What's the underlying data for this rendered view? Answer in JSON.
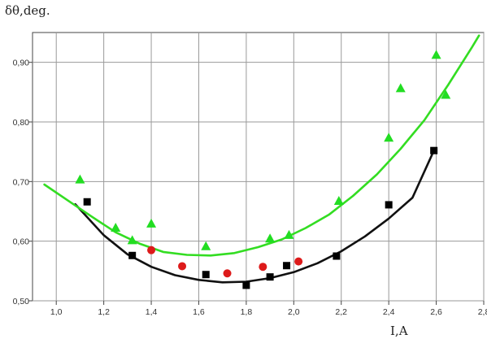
{
  "chart_data": {
    "type": "scatter",
    "title": "",
    "ylabel": "δθ,deg.",
    "xlabel": "I,A",
    "xlim": [
      0.9,
      2.8
    ],
    "ylim": [
      0.5,
      0.95
    ],
    "x_ticks": [
      1.0,
      1.2,
      1.4,
      1.6,
      1.8,
      2.0,
      2.2,
      2.4,
      2.6,
      2.8
    ],
    "x_tick_labels": [
      "1,0",
      "1,2",
      "1,4",
      "1,6",
      "1,8",
      "2,0",
      "2,2",
      "2,4",
      "2,6",
      "2,8"
    ],
    "y_ticks": [
      0.5,
      0.6,
      0.7,
      0.8,
      0.9
    ],
    "y_tick_labels": [
      "0,50",
      "0,60",
      "0,70",
      "0,80",
      "0,90"
    ],
    "grid": true,
    "series": [
      {
        "marker": "square",
        "color": "#000000",
        "points": [
          [
            1.13,
            0.666
          ],
          [
            1.32,
            0.576
          ],
          [
            1.63,
            0.544
          ],
          [
            1.8,
            0.526
          ],
          [
            1.9,
            0.54
          ],
          [
            1.97,
            0.559
          ],
          [
            2.18,
            0.575
          ],
          [
            2.4,
            0.661
          ],
          [
            2.59,
            0.752
          ]
        ]
      },
      {
        "marker": "circle",
        "color": "#dd1a1a",
        "points": [
          [
            1.4,
            0.585
          ],
          [
            1.53,
            0.558
          ],
          [
            1.72,
            0.546
          ],
          [
            1.87,
            0.557
          ],
          [
            2.02,
            0.566
          ]
        ]
      },
      {
        "marker": "triangle",
        "color": "#22dd22",
        "points": [
          [
            1.1,
            0.703
          ],
          [
            1.25,
            0.622
          ],
          [
            1.32,
            0.601
          ],
          [
            1.4,
            0.629
          ],
          [
            1.63,
            0.591
          ],
          [
            1.9,
            0.604
          ],
          [
            1.98,
            0.61
          ],
          [
            2.19,
            0.667
          ],
          [
            2.4,
            0.773
          ],
          [
            2.45,
            0.856
          ],
          [
            2.6,
            0.912
          ],
          [
            2.64,
            0.845
          ]
        ]
      }
    ],
    "fit_curves": [
      {
        "color": "#111111",
        "points": [
          [
            1.08,
            0.662
          ],
          [
            1.2,
            0.61
          ],
          [
            1.3,
            0.578
          ],
          [
            1.4,
            0.557
          ],
          [
            1.5,
            0.543
          ],
          [
            1.6,
            0.535
          ],
          [
            1.7,
            0.531
          ],
          [
            1.8,
            0.532
          ],
          [
            1.9,
            0.538
          ],
          [
            2.0,
            0.548
          ],
          [
            2.1,
            0.563
          ],
          [
            2.2,
            0.583
          ],
          [
            2.3,
            0.608
          ],
          [
            2.4,
            0.638
          ],
          [
            2.5,
            0.673
          ],
          [
            2.59,
            0.752
          ]
        ]
      },
      {
        "color": "#33dd22",
        "points": [
          [
            0.95,
            0.695
          ],
          [
            1.05,
            0.668
          ],
          [
            1.15,
            0.641
          ],
          [
            1.25,
            0.615
          ],
          [
            1.35,
            0.596
          ],
          [
            1.45,
            0.582
          ],
          [
            1.55,
            0.577
          ],
          [
            1.65,
            0.576
          ],
          [
            1.75,
            0.58
          ],
          [
            1.85,
            0.59
          ],
          [
            1.95,
            0.603
          ],
          [
            2.05,
            0.622
          ],
          [
            2.15,
            0.645
          ],
          [
            2.25,
            0.676
          ],
          [
            2.35,
            0.712
          ],
          [
            2.45,
            0.755
          ],
          [
            2.55,
            0.803
          ],
          [
            2.65,
            0.862
          ],
          [
            2.75,
            0.925
          ],
          [
            2.78,
            0.945
          ]
        ]
      }
    ]
  }
}
